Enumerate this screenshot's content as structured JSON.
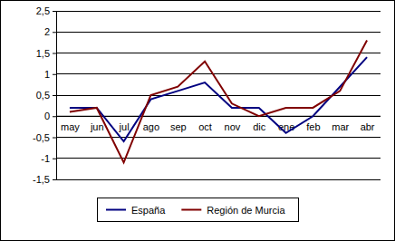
{
  "chart_data": {
    "type": "line",
    "categories": [
      "may",
      "jun",
      "jul",
      "ago",
      "sep",
      "oct",
      "nov",
      "dic",
      "ene",
      "feb",
      "mar",
      "abr"
    ],
    "series": [
      {
        "name": "España",
        "color": "#000080",
        "values": [
          0.2,
          0.2,
          -0.6,
          0.4,
          0.6,
          0.8,
          0.2,
          0.2,
          -0.4,
          0.0,
          0.7,
          1.4
        ]
      },
      {
        "name": "Región de Murcia",
        "color": "#800000",
        "values": [
          0.1,
          0.2,
          -1.1,
          0.5,
          0.7,
          1.3,
          0.3,
          0.0,
          0.2,
          0.2,
          0.6,
          1.8
        ]
      }
    ],
    "ylim": [
      -1.5,
      2.5
    ],
    "yticks": [
      {
        "value": 2.5,
        "label": "2,5"
      },
      2,
      {
        "value": 1.5,
        "label": "1,5"
      },
      1,
      {
        "value": 0.5,
        "label": "0,5"
      },
      0,
      {
        "value": -0.5,
        "label": "-0,5"
      },
      -1,
      {
        "value": -1.5,
        "label": "-1,5"
      }
    ],
    "grid": true,
    "legend": "bottom"
  }
}
